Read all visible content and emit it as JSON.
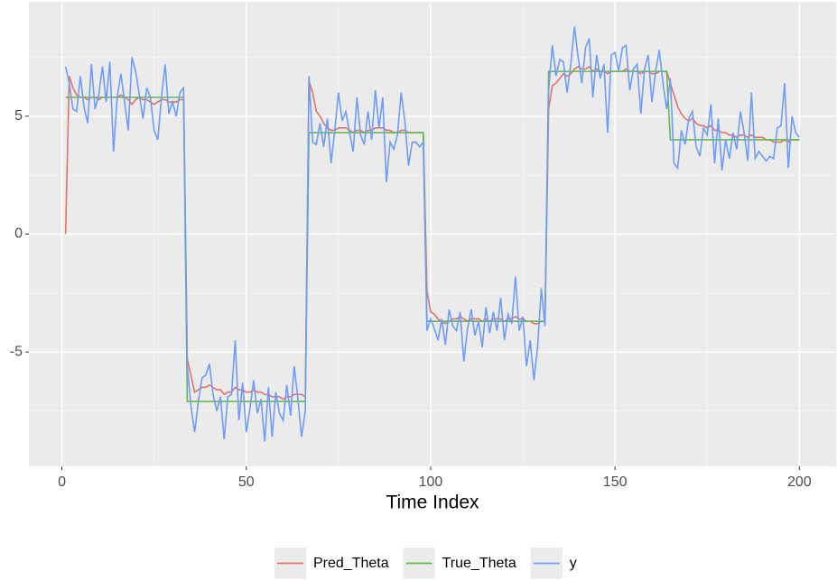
{
  "chart_data": {
    "type": "line",
    "x_label": "Time Index",
    "xlim": [
      -8.95,
      209.95
    ],
    "xticks": [
      0,
      50,
      100,
      150,
      200
    ],
    "x_minor_ticks": [
      25,
      75,
      125,
      175
    ],
    "ylim": [
      -9.85,
      9.85
    ],
    "yticks": [
      -5,
      0,
      5
    ],
    "y_minor_ticks": [
      -7.5,
      -2.5,
      2.5,
      7.5
    ],
    "grid": true,
    "legend": "bottom",
    "x": [
      1,
      2,
      3,
      4,
      5,
      6,
      7,
      8,
      9,
      10,
      11,
      12,
      13,
      14,
      15,
      16,
      17,
      18,
      19,
      20,
      21,
      22,
      23,
      24,
      25,
      26,
      27,
      28,
      29,
      30,
      31,
      32,
      33,
      34,
      35,
      36,
      37,
      38,
      39,
      40,
      41,
      42,
      43,
      44,
      45,
      46,
      47,
      48,
      49,
      50,
      51,
      52,
      53,
      54,
      55,
      56,
      57,
      58,
      59,
      60,
      61,
      62,
      63,
      64,
      65,
      66,
      67,
      68,
      69,
      70,
      71,
      72,
      73,
      74,
      75,
      76,
      77,
      78,
      79,
      80,
      81,
      82,
      83,
      84,
      85,
      86,
      87,
      88,
      89,
      90,
      91,
      92,
      93,
      94,
      95,
      96,
      97,
      98,
      99,
      100,
      101,
      102,
      103,
      104,
      105,
      106,
      107,
      108,
      109,
      110,
      111,
      112,
      113,
      114,
      115,
      116,
      117,
      118,
      119,
      120,
      121,
      122,
      123,
      124,
      125,
      126,
      127,
      128,
      129,
      130,
      131,
      132,
      133,
      134,
      135,
      136,
      137,
      138,
      139,
      140,
      141,
      142,
      143,
      144,
      145,
      146,
      147,
      148,
      149,
      150,
      151,
      152,
      153,
      154,
      155,
      156,
      157,
      158,
      159,
      160,
      161,
      162,
      163,
      164,
      165,
      166,
      167,
      168,
      169,
      170,
      171,
      172,
      173,
      174,
      175,
      176,
      177,
      178,
      179,
      180,
      181,
      182,
      183,
      184,
      185,
      186,
      187,
      188,
      189,
      190,
      191,
      192,
      193,
      194,
      195,
      196,
      197,
      198,
      199,
      200
    ],
    "series": [
      {
        "name": "Pred_Theta",
        "color": "#e0736a",
        "values": [
          0,
          6.7,
          6.2,
          5.9,
          5.8,
          5.8,
          5.7,
          5.8,
          5.8,
          5.7,
          5.8,
          5.8,
          5.8,
          5.8,
          5.8,
          5.9,
          5.8,
          5.7,
          5.5,
          5.7,
          5.8,
          5.7,
          5.7,
          5.6,
          5.5,
          5.6,
          5.7,
          5.7,
          5.6,
          5.6,
          5.6,
          5.7,
          5.7,
          -5.3,
          -6.0,
          -6.7,
          -6.6,
          -6.5,
          -6.5,
          -6.4,
          -6.5,
          -6.6,
          -6.6,
          -6.8,
          -6.7,
          -6.7,
          -6.5,
          -6.6,
          -6.6,
          -6.7,
          -6.7,
          -6.6,
          -6.7,
          -6.7,
          -6.8,
          -6.8,
          -6.9,
          -6.9,
          -6.9,
          -7.0,
          -6.9,
          -6.9,
          -6.8,
          -6.8,
          -6.8,
          -6.9,
          6.5,
          6.0,
          5.2,
          5.0,
          4.7,
          4.5,
          4.4,
          4.4,
          4.5,
          4.5,
          4.5,
          4.4,
          4.3,
          4.4,
          4.4,
          4.3,
          4.4,
          4.4,
          4.5,
          4.5,
          4.5,
          4.4,
          4.4,
          4.3,
          4.3,
          4.4,
          4.4,
          4.3,
          4.3,
          4.3,
          4.3,
          4.3,
          -2.4,
          -3.3,
          -3.4,
          -3.6,
          -3.7,
          -3.8,
          -3.7,
          -3.6,
          -3.6,
          -3.5,
          -3.6,
          -3.7,
          -3.6,
          -3.6,
          -3.6,
          -3.7,
          -3.6,
          -3.7,
          -3.6,
          -3.6,
          -3.6,
          -3.7,
          -3.6,
          -3.6,
          -3.5,
          -3.6,
          -3.6,
          -3.7,
          -3.7,
          -3.8,
          -3.8,
          -3.7,
          -3.7,
          5.3,
          6.3,
          6.4,
          6.6,
          6.8,
          6.7,
          6.8,
          7.0,
          7.1,
          7.0,
          7.0,
          7.1,
          6.9,
          7.0,
          6.9,
          6.9,
          6.8,
          6.9,
          6.9,
          6.9,
          6.9,
          7.0,
          6.9,
          6.9,
          6.9,
          6.8,
          6.9,
          6.9,
          6.8,
          6.8,
          6.9,
          6.9,
          6.9,
          6.4,
          5.9,
          5.4,
          5.1,
          4.9,
          4.8,
          4.9,
          4.7,
          4.6,
          4.6,
          4.5,
          4.6,
          4.4,
          4.4,
          4.3,
          4.3,
          4.2,
          4.2,
          4.1,
          4.2,
          4.2,
          4.1,
          4.2,
          4.1,
          4.1,
          4.1,
          4.0,
          4.0,
          3.9,
          3.9,
          3.9,
          4.0,
          3.9,
          4.0,
          4.0,
          4.0
        ]
      },
      {
        "name": "True_Theta",
        "color": "#64b94e",
        "values": [
          5.8,
          5.8,
          5.8,
          5.8,
          5.8,
          5.8,
          5.8,
          5.8,
          5.8,
          5.8,
          5.8,
          5.8,
          5.8,
          5.8,
          5.8,
          5.8,
          5.8,
          5.8,
          5.8,
          5.8,
          5.8,
          5.8,
          5.8,
          5.8,
          5.8,
          5.8,
          5.8,
          5.8,
          5.8,
          5.8,
          5.8,
          5.8,
          5.8,
          -7.1,
          -7.1,
          -7.1,
          -7.1,
          -7.1,
          -7.1,
          -7.1,
          -7.1,
          -7.1,
          -7.1,
          -7.1,
          -7.1,
          -7.1,
          -7.1,
          -7.1,
          -7.1,
          -7.1,
          -7.1,
          -7.1,
          -7.1,
          -7.1,
          -7.1,
          -7.1,
          -7.1,
          -7.1,
          -7.1,
          -7.1,
          -7.1,
          -7.1,
          -7.1,
          -7.1,
          -7.1,
          -7.1,
          4.3,
          4.3,
          4.3,
          4.3,
          4.3,
          4.3,
          4.3,
          4.3,
          4.3,
          4.3,
          4.3,
          4.3,
          4.3,
          4.3,
          4.3,
          4.3,
          4.3,
          4.3,
          4.3,
          4.3,
          4.3,
          4.3,
          4.3,
          4.3,
          4.3,
          4.3,
          4.3,
          4.3,
          4.3,
          4.3,
          4.3,
          4.3,
          -3.7,
          -3.7,
          -3.7,
          -3.7,
          -3.7,
          -3.7,
          -3.7,
          -3.7,
          -3.7,
          -3.7,
          -3.7,
          -3.7,
          -3.7,
          -3.7,
          -3.7,
          -3.7,
          -3.7,
          -3.7,
          -3.7,
          -3.7,
          -3.7,
          -3.7,
          -3.7,
          -3.7,
          -3.7,
          -3.7,
          -3.7,
          -3.7,
          -3.7,
          -3.7,
          -3.7,
          -3.7,
          -3.7,
          6.9,
          6.9,
          6.9,
          6.9,
          6.9,
          6.9,
          6.9,
          6.9,
          6.9,
          6.9,
          6.9,
          6.9,
          6.9,
          6.9,
          6.9,
          6.9,
          6.9,
          6.9,
          6.9,
          6.9,
          6.9,
          6.9,
          6.9,
          6.9,
          6.9,
          6.9,
          6.9,
          6.9,
          6.9,
          6.9,
          6.9,
          6.9,
          6.9,
          4.0,
          4.0,
          4.0,
          4.0,
          4.0,
          4.0,
          4.0,
          4.0,
          4.0,
          4.0,
          4.0,
          4.0,
          4.0,
          4.0,
          4.0,
          4.0,
          4.0,
          4.0,
          4.0,
          4.0,
          4.0,
          4.0,
          4.0,
          4.0,
          4.0,
          4.0,
          4.0,
          4.0,
          4.0,
          4.0,
          4.0,
          4.0,
          4.0,
          4.0,
          4.0,
          4.0
        ]
      },
      {
        "name": "y",
        "color": "#6f9cf7",
        "values": [
          7.1,
          6.4,
          5.3,
          5.2,
          6.7,
          5.4,
          4.7,
          7.2,
          5.3,
          5.9,
          7.1,
          5.6,
          7.3,
          3.5,
          5.8,
          6.8,
          5.6,
          4.4,
          7.5,
          6.9,
          5.9,
          4.9,
          6.2,
          5.8,
          4.4,
          4.0,
          5.8,
          7.2,
          5.1,
          5.6,
          5.0,
          6.0,
          6.2,
          -5.6,
          -7.3,
          -8.4,
          -7.1,
          -6.1,
          -6.0,
          -5.5,
          -6.8,
          -7.5,
          -6.9,
          -8.7,
          -6.9,
          -6.8,
          -4.5,
          -7.9,
          -6.3,
          -8.4,
          -7.4,
          -6.2,
          -7.6,
          -7.0,
          -8.8,
          -6.5,
          -8.6,
          -6.7,
          -7.6,
          -7.9,
          -6.4,
          -7.7,
          -5.6,
          -7.0,
          -8.6,
          -7.5,
          6.7,
          3.9,
          3.8,
          4.7,
          3.7,
          4.9,
          3.0,
          4.4,
          6.0,
          4.8,
          5.2,
          4.3,
          3.5,
          5.8,
          4.2,
          3.8,
          5.2,
          4.0,
          6.1,
          4.5,
          5.8,
          2.2,
          3.9,
          3.6,
          4.2,
          6.0,
          4.8,
          2.9,
          3.9,
          3.9,
          3.7,
          3.9,
          -4.1,
          -3.6,
          -4.0,
          -4.5,
          -3.6,
          -4.7,
          -3.2,
          -3.9,
          -4.1,
          -3.3,
          -5.4,
          -4.0,
          -3.2,
          -4.3,
          -3.7,
          -4.8,
          -3.1,
          -4.2,
          -3.3,
          -4.1,
          -2.7,
          -4.5,
          -3.4,
          -3.8,
          -1.8,
          -4.1,
          -3.5,
          -5.6,
          -4.5,
          -6.2,
          -4.8,
          -2.3,
          -3.9,
          6.1,
          8.0,
          6.7,
          7.4,
          7.3,
          6.0,
          7.2,
          8.8,
          7.5,
          6.4,
          7.9,
          8.3,
          5.8,
          7.6,
          6.6,
          7.2,
          4.3,
          7.6,
          7.7,
          6.9,
          7.9,
          8.0,
          6.1,
          7.0,
          7.2,
          5.1,
          7.0,
          7.6,
          5.6,
          6.9,
          7.8,
          6.4,
          5.3,
          6.6,
          3.0,
          2.8,
          4.4,
          3.8,
          4.9,
          5.2,
          3.7,
          3.3,
          4.5,
          4.2,
          5.5,
          3.0,
          4.9,
          2.7,
          4.0,
          3.2,
          4.3,
          3.6,
          5.2,
          4.3,
          3.1,
          6.0,
          3.2,
          3.5,
          3.3,
          3.1,
          3.3,
          3.2,
          4.5,
          4.6,
          6.4,
          2.8,
          5.0,
          4.3,
          4.1
        ]
      }
    ]
  }
}
